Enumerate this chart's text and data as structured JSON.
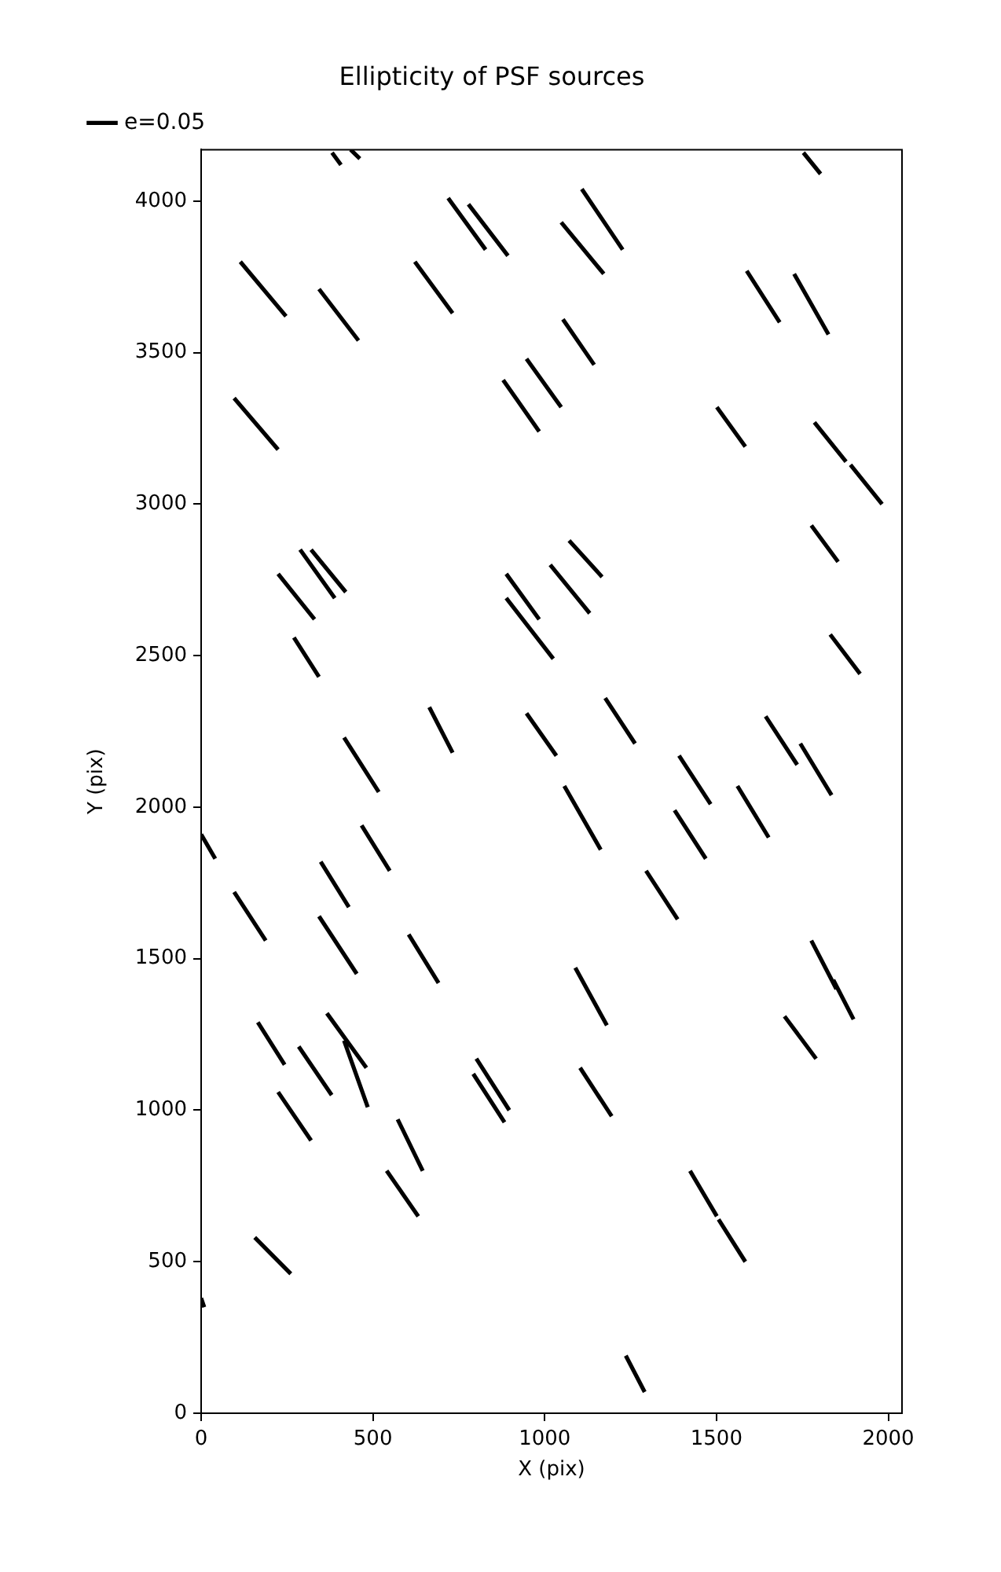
{
  "chart_data": {
    "type": "line",
    "title": "Ellipticity of PSF sources",
    "xlabel": "X (pix)",
    "ylabel": "Y (pix)",
    "xlim": [
      0,
      2040
    ],
    "ylim": [
      0,
      4170
    ],
    "xticks": [
      0,
      500,
      1000,
      1500,
      2000
    ],
    "yticks": [
      0,
      500,
      1000,
      1500,
      2000,
      2500,
      3000,
      3500,
      4000
    ],
    "grid": false,
    "legend": "top left",
    "line_style": "solid",
    "series": [
      {
        "name": "e=0.05",
        "color": "#000000",
        "x": [
          381,
          407,
          null,
          435,
          462,
          null,
          1753,
          1803,
          null,
          719,
          828,
          null,
          778,
          893,
          null,
          1108,
          1227,
          null,
          1048,
          1172,
          null,
          114,
          247,
          null,
          622,
          732,
          null,
          343,
          458,
          null,
          1588,
          1684,
          null,
          1726,
          1826,
          null,
          1053,
          1144,
          null,
          947,
          1048,
          null,
          879,
          984,
          null,
          96,
          224,
          null,
          1501,
          1584,
          null,
          1785,
          1877,
          null,
          1890,
          1982,
          null,
          1776,
          1854,
          null,
          1071,
          1167,
          null,
          1016,
          1131,
          null,
          888,
          984,
          null,
          888,
          1025,
          null,
          288,
          389,
          null,
          320,
          421,
          null,
          224,
          330,
          null,
          270,
          343,
          null,
          1831,
          1918,
          null,
          664,
          732,
          null,
          947,
          1034,
          null,
          1176,
          1263,
          null,
          1643,
          1735,
          null,
          1744,
          1835,
          null,
          416,
          517,
          null,
          1391,
          1483,
          null,
          1057,
          1163,
          null,
          1561,
          1652,
          null,
          1378,
          1469,
          null,
          0,
          41,
          null,
          467,
          549,
          null,
          348,
          430,
          null,
          1295,
          1387,
          null,
          96,
          188,
          null,
          343,
          453,
          null,
          604,
          691,
          null,
          1089,
          1181,
          null,
          1776,
          1849,
          null,
          1840,
          1899,
          null,
          165,
          243,
          null,
          366,
          481,
          null,
          416,
          485,
          null,
          284,
          380,
          null,
          224,
          320,
          null,
          572,
          645,
          null,
          540,
          632,
          null,
          801,
          897,
          null,
          792,
          883,
          null,
          1103,
          1195,
          null,
          1698,
          1790,
          null,
          156,
          261,
          null,
          0,
          9,
          null,
          1423,
          1501,
          null,
          1506,
          1584,
          null,
          1236,
          1291
        ],
        "values": [
          4160,
          4120,
          null,
          4170,
          4140,
          null,
          4160,
          4090,
          null,
          4010,
          3840,
          null,
          3990,
          3820,
          null,
          4040,
          3840,
          null,
          3930,
          3760,
          null,
          3800,
          3620,
          null,
          3800,
          3630,
          null,
          3710,
          3540,
          null,
          3770,
          3600,
          null,
          3760,
          3560,
          null,
          3610,
          3460,
          null,
          3480,
          3320,
          null,
          3410,
          3240,
          null,
          3350,
          3180,
          null,
          3320,
          3190,
          null,
          3270,
          3140,
          null,
          3130,
          3000,
          null,
          2930,
          2810,
          null,
          2880,
          2760,
          null,
          2800,
          2640,
          null,
          2770,
          2620,
          null,
          2690,
          2490,
          null,
          2850,
          2690,
          null,
          2850,
          2710,
          null,
          2770,
          2620,
          null,
          2560,
          2430,
          null,
          2570,
          2440,
          null,
          2330,
          2180,
          null,
          2310,
          2170,
          null,
          2360,
          2210,
          null,
          2300,
          2140,
          null,
          2210,
          2040,
          null,
          2230,
          2050,
          null,
          2170,
          2010,
          null,
          2070,
          1860,
          null,
          2070,
          1900,
          null,
          1990,
          1830,
          null,
          1910,
          1830,
          null,
          1940,
          1790,
          null,
          1820,
          1670,
          null,
          1790,
          1630,
          null,
          1720,
          1560,
          null,
          1640,
          1450,
          null,
          1580,
          1420,
          null,
          1470,
          1280,
          null,
          1560,
          1400,
          null,
          1430,
          1300,
          null,
          1290,
          1150,
          null,
          1320,
          1140,
          null,
          1230,
          1010,
          null,
          1210,
          1050,
          null,
          1060,
          900,
          null,
          970,
          800,
          null,
          800,
          650,
          null,
          1170,
          1000,
          null,
          1120,
          960,
          null,
          1140,
          980,
          null,
          1310,
          1170,
          null,
          580,
          460,
          null,
          380,
          350,
          null,
          800,
          650,
          null,
          640,
          500,
          null,
          190,
          70
        ]
      }
    ]
  }
}
